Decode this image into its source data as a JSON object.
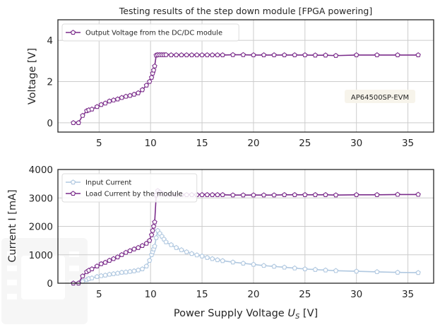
{
  "chart_data": [
    {
      "type": "line",
      "title": "Testing results of the step down module [FPGA powering]",
      "xlabel": "",
      "ylabel": "Voltage [V]",
      "xlim": [
        1,
        37.5
      ],
      "ylim": [
        -0.45,
        5.0
      ],
      "xticks": [
        5,
        10,
        15,
        20,
        25,
        30,
        35
      ],
      "yticks": [
        0,
        2,
        4
      ],
      "grid": true,
      "legend": "top-left",
      "annotation": "AP64500SP-EVM",
      "series": [
        {
          "name": "Output Voltage from the DC/DC module",
          "color": "#7b2d8b",
          "marker": "pentagon-open",
          "x": [
            2.5,
            3.0,
            3.4,
            3.8,
            4.0,
            4.3,
            4.8,
            5.2,
            5.6,
            6.0,
            6.4,
            6.8,
            7.2,
            7.6,
            8.0,
            8.4,
            8.8,
            9.2,
            9.6,
            9.9,
            10.1,
            10.2,
            10.3,
            10.4,
            10.55,
            10.7,
            10.9,
            11.1,
            11.3,
            11.5,
            12.0,
            12.5,
            13.0,
            13.5,
            14.0,
            14.5,
            15.0,
            15.5,
            16.0,
            16.5,
            17.0,
            18.0,
            19.0,
            20.0,
            21.0,
            22.0,
            23.0,
            24.0,
            25.0,
            26.0,
            27.0,
            28.0,
            30.0,
            32.0,
            34.0,
            36.0
          ],
          "y": [
            0.0,
            0.0,
            0.35,
            0.58,
            0.62,
            0.66,
            0.78,
            0.88,
            0.95,
            1.05,
            1.1,
            1.15,
            1.22,
            1.28,
            1.32,
            1.38,
            1.45,
            1.6,
            1.82,
            2.0,
            2.2,
            2.4,
            2.55,
            2.75,
            3.28,
            3.3,
            3.3,
            3.3,
            3.3,
            3.3,
            3.29,
            3.29,
            3.29,
            3.29,
            3.29,
            3.29,
            3.29,
            3.29,
            3.29,
            3.29,
            3.29,
            3.3,
            3.3,
            3.29,
            3.29,
            3.29,
            3.29,
            3.29,
            3.29,
            3.28,
            3.28,
            3.26,
            3.29,
            3.29,
            3.29,
            3.29
          ]
        }
      ]
    },
    {
      "type": "line",
      "title": "",
      "xlabel": "Power Supply Voltage U_S [V]",
      "ylabel": "Current I [mA]",
      "xlim": [
        1,
        37.5
      ],
      "ylim": [
        0,
        4000
      ],
      "xticks": [
        5,
        10,
        15,
        20,
        25,
        30,
        35
      ],
      "yticks": [
        0,
        1000,
        2000,
        3000,
        4000
      ],
      "grid": true,
      "legend": "top-left",
      "series": [
        {
          "name": "Input Current",
          "color": "#b0c8e0",
          "marker": "pentagon-open",
          "x": [
            2.5,
            3.0,
            3.4,
            3.8,
            4.0,
            4.3,
            4.8,
            5.2,
            5.6,
            6.0,
            6.4,
            6.8,
            7.2,
            7.6,
            8.0,
            8.4,
            8.8,
            9.2,
            9.6,
            9.9,
            10.1,
            10.2,
            10.3,
            10.4,
            10.55,
            10.7,
            10.9,
            11.1,
            11.3,
            11.5,
            12.0,
            12.5,
            13.0,
            13.5,
            14.0,
            14.5,
            15.0,
            15.5,
            16.0,
            16.5,
            17.0,
            18.0,
            19.0,
            20.0,
            21.0,
            22.0,
            23.0,
            24.0,
            25.0,
            26.0,
            27.0,
            28.0,
            30.0,
            32.0,
            34.0,
            36.0
          ],
          "y": [
            0,
            0,
            60,
            120,
            160,
            180,
            230,
            260,
            280,
            310,
            330,
            350,
            380,
            390,
            410,
            430,
            460,
            500,
            600,
            800,
            1000,
            1100,
            1200,
            1300,
            1600,
            1850,
            1750,
            1650,
            1550,
            1450,
            1350,
            1250,
            1170,
            1100,
            1040,
            990,
            950,
            900,
            860,
            820,
            790,
            740,
            700,
            660,
            620,
            590,
            560,
            530,
            500,
            480,
            460,
            440,
            420,
            400,
            380,
            370
          ]
        },
        {
          "name": "Load Current by the module",
          "color": "#7b2d8b",
          "marker": "pentagon-open",
          "x": [
            2.5,
            3.0,
            3.4,
            3.8,
            4.0,
            4.3,
            4.8,
            5.2,
            5.6,
            6.0,
            6.4,
            6.8,
            7.2,
            7.6,
            8.0,
            8.4,
            8.8,
            9.2,
            9.6,
            9.9,
            10.1,
            10.2,
            10.3,
            10.4,
            10.55,
            10.7,
            10.9,
            11.1,
            11.3,
            11.5,
            12.0,
            12.5,
            13.0,
            13.5,
            14.0,
            14.5,
            15.0,
            15.5,
            16.0,
            16.5,
            17.0,
            18.0,
            19.0,
            20.0,
            21.0,
            22.0,
            23.0,
            24.0,
            25.0,
            26.0,
            27.0,
            28.0,
            30.0,
            32.0,
            34.0,
            36.0
          ],
          "y": [
            0,
            0,
            250,
            400,
            450,
            500,
            600,
            680,
            730,
            800,
            860,
            920,
            1000,
            1080,
            1140,
            1200,
            1250,
            1320,
            1400,
            1500,
            1700,
            1850,
            2000,
            2150,
            3100,
            3250,
            3200,
            3150,
            3130,
            3120,
            3120,
            3110,
            3110,
            3110,
            3110,
            3110,
            3110,
            3110,
            3110,
            3110,
            3110,
            3100,
            3100,
            3100,
            3100,
            3100,
            3110,
            3110,
            3110,
            3110,
            3110,
            3100,
            3110,
            3110,
            3120,
            3120
          ]
        }
      ]
    }
  ]
}
